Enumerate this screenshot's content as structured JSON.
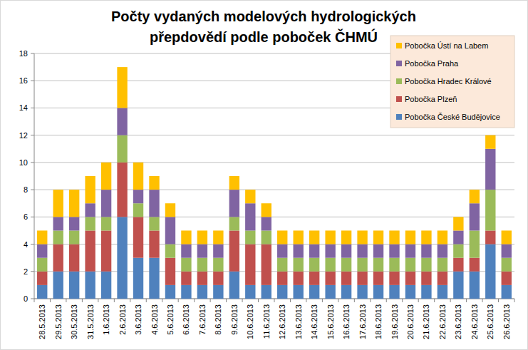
{
  "chart_data": {
    "type": "bar",
    "stacked": true,
    "title": "Počty vydaných modelových hydrologických přepdovědí podle poboček ČHMÚ",
    "categories": [
      "28.5.2013",
      "29.5.2013",
      "30.5.2013",
      "31.5.2013",
      "1.6.2013",
      "2.6.2013",
      "3.6.2013",
      "4.6.2013",
      "5.6.2013",
      "6.6.2013",
      "7.6.2013",
      "8.6.2013",
      "9.6.2013",
      "10.6.2013",
      "11.6.2013",
      "12.6.2013",
      "13.6.2013",
      "14.6.2013",
      "15.6.2013",
      "16.6.2013",
      "17.6.2013",
      "18.6.2013",
      "19.6.2013",
      "20.6.2013",
      "21.6.2013",
      "22.6.2013",
      "23.6.2013",
      "24.6.2013",
      "25.6.2013",
      "26.6.2013"
    ],
    "series": [
      {
        "name": "Pobočka České Budějovice",
        "color": "#4f81bd",
        "values": [
          1,
          2,
          2,
          2,
          2,
          6,
          3,
          3,
          1,
          1,
          1,
          1,
          2,
          1,
          1,
          1,
          1,
          1,
          1,
          1,
          1,
          1,
          1,
          1,
          1,
          1,
          2,
          2,
          4,
          1
        ]
      },
      {
        "name": "Pobočka Plzeň",
        "color": "#c0504d",
        "values": [
          1,
          2,
          2,
          3,
          3,
          4,
          3,
          2,
          2,
          1,
          1,
          1,
          3,
          3,
          3,
          1,
          1,
          1,
          1,
          1,
          1,
          1,
          1,
          1,
          1,
          1,
          1,
          1,
          1,
          1
        ]
      },
      {
        "name": "Pobočka Hradec Králové",
        "color": "#9bbb59",
        "values": [
          1,
          1,
          1,
          1,
          1,
          2,
          1,
          1,
          1,
          1,
          1,
          1,
          1,
          1,
          1,
          1,
          1,
          1,
          1,
          1,
          1,
          1,
          1,
          1,
          1,
          1,
          1,
          2,
          3,
          1
        ]
      },
      {
        "name": "Pobočka Praha",
        "color": "#8064a2",
        "values": [
          1,
          1,
          1,
          1,
          2,
          2,
          1,
          2,
          2,
          1,
          1,
          1,
          2,
          2,
          1,
          1,
          1,
          1,
          1,
          1,
          1,
          1,
          1,
          1,
          1,
          1,
          1,
          2,
          3,
          1
        ]
      },
      {
        "name": "Pobočka Ústí na Labem",
        "color": "#ffc000",
        "values": [
          1,
          2,
          2,
          2,
          2,
          3,
          2,
          1,
          1,
          1,
          1,
          1,
          1,
          1,
          1,
          1,
          1,
          1,
          1,
          1,
          1,
          1,
          1,
          1,
          1,
          1,
          1,
          1,
          1,
          1
        ]
      }
    ],
    "ylim": [
      0,
      18
    ],
    "yticks": [
      0,
      2,
      4,
      6,
      8,
      10,
      12,
      14,
      16,
      18
    ],
    "grid": true,
    "legend": "top-right"
  }
}
